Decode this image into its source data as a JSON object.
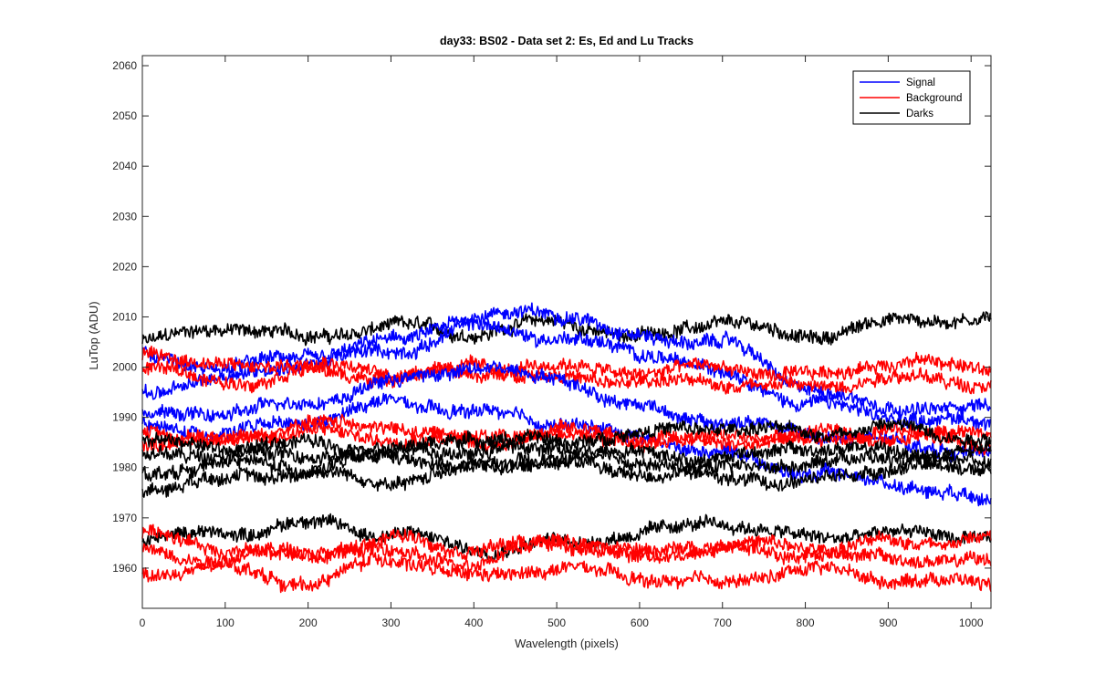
{
  "chart_data": {
    "type": "line",
    "title": "day33: BS02 - Data set 2: Es, Ed and Lu Tracks",
    "xlabel": "Wavelength (pixels)",
    "ylabel": "LuTop (ADU)",
    "xlim": [
      0,
      1024
    ],
    "ylim": [
      1952,
      2062
    ],
    "xticks": [
      0,
      100,
      200,
      300,
      400,
      500,
      600,
      700,
      800,
      900,
      1000
    ],
    "yticks": [
      1960,
      1970,
      1980,
      1990,
      2000,
      2010,
      2020,
      2030,
      2040,
      2050,
      2060
    ],
    "grid": false,
    "legend_position": "top-right",
    "legend": [
      {
        "name": "Signal",
        "color": "#0000ff"
      },
      {
        "name": "Background",
        "color": "#ff0000"
      },
      {
        "name": "Darks",
        "color": "#000000"
      }
    ],
    "series": [
      {
        "group": "Darks",
        "color": "#000000",
        "x": [
          0,
          100,
          200,
          300,
          400,
          500,
          600,
          700,
          800,
          900,
          1024
        ],
        "values": [
          2005,
          2008,
          2006,
          2008,
          2007,
          2009,
          2006,
          2009,
          2006,
          2009,
          2010
        ]
      },
      {
        "group": "Signal",
        "color": "#0000ff",
        "x": [
          0,
          100,
          200,
          300,
          400,
          500,
          600,
          700,
          800,
          900,
          1024
        ],
        "values": [
          2002,
          2000,
          2002,
          2005,
          2010,
          2011,
          2006,
          2005,
          1996,
          1992,
          1992
        ]
      },
      {
        "group": "Signal",
        "color": "#0000ff",
        "x": [
          0,
          100,
          200,
          300,
          400,
          500,
          600,
          700,
          800,
          900,
          1024
        ],
        "values": [
          1995,
          1998,
          2001,
          2003,
          2008,
          2006,
          2003,
          1999,
          1993,
          1990,
          1989
        ]
      },
      {
        "group": "Background",
        "color": "#ff0000",
        "x": [
          0,
          100,
          200,
          300,
          400,
          500,
          600,
          700,
          800,
          900,
          1024
        ],
        "values": [
          2003,
          2000,
          2001,
          1999,
          2000,
          2000,
          1999,
          2000,
          1998,
          2001,
          2000
        ]
      },
      {
        "group": "Background",
        "color": "#ff0000",
        "x": [
          0,
          100,
          200,
          300,
          400,
          500,
          600,
          700,
          800,
          900,
          1024
        ],
        "values": [
          2000,
          1997,
          1999,
          1998,
          1999,
          1998,
          1997,
          1997,
          1996,
          1998,
          1997
        ]
      },
      {
        "group": "Signal",
        "color": "#0000ff",
        "x": [
          0,
          100,
          200,
          300,
          400,
          500,
          600,
          700,
          800,
          900,
          1024
        ],
        "values": [
          1990,
          1991,
          1993,
          1997,
          2000,
          1998,
          1992,
          1989,
          1987,
          1985,
          1983
        ]
      },
      {
        "group": "Signal",
        "color": "#0000ff",
        "x": [
          0,
          100,
          200,
          300,
          400,
          500,
          600,
          700,
          800,
          900,
          1024
        ],
        "values": [
          1988,
          1987,
          1989,
          1993,
          1991,
          1989,
          1986,
          1983,
          1979,
          1977,
          1974
        ]
      },
      {
        "group": "Background",
        "color": "#ff0000",
        "x": [
          0,
          100,
          200,
          300,
          400,
          500,
          600,
          700,
          800,
          900,
          1024
        ],
        "values": [
          1987,
          1985,
          1989,
          1988,
          1986,
          1987,
          1986,
          1986,
          1987,
          1986,
          1987
        ]
      },
      {
        "group": "Background",
        "color": "#ff0000",
        "x": [
          0,
          100,
          200,
          300,
          400,
          500,
          600,
          700,
          800,
          900,
          1024
        ],
        "values": [
          1985,
          1986,
          1987,
          1986,
          1985,
          1987,
          1985,
          1985,
          1985,
          1987,
          1985
        ]
      },
      {
        "group": "Darks",
        "color": "#000000",
        "x": [
          0,
          100,
          200,
          300,
          400,
          500,
          600,
          700,
          800,
          900,
          1024
        ],
        "values": [
          1985,
          1984,
          1985,
          1983,
          1986,
          1985,
          1987,
          1988,
          1987,
          1988,
          1986
        ]
      },
      {
        "group": "Darks",
        "color": "#000000",
        "x": [
          0,
          100,
          200,
          300,
          400,
          500,
          600,
          700,
          800,
          900,
          1024
        ],
        "values": [
          1982,
          1983,
          1982,
          1984,
          1983,
          1984,
          1983,
          1982,
          1984,
          1983,
          1983
        ]
      },
      {
        "group": "Darks",
        "color": "#000000",
        "x": [
          0,
          100,
          200,
          300,
          400,
          500,
          600,
          700,
          800,
          900,
          1024
        ],
        "values": [
          1979,
          1981,
          1980,
          1982,
          1980,
          1982,
          1981,
          1980,
          1981,
          1982,
          1981
        ]
      },
      {
        "group": "Darks",
        "color": "#000000",
        "x": [
          0,
          100,
          200,
          300,
          400,
          500,
          600,
          700,
          800,
          900,
          1024
        ],
        "values": [
          1976,
          1978,
          1979,
          1977,
          1980,
          1981,
          1979,
          1978,
          1977,
          1980,
          1980
        ]
      },
      {
        "group": "Darks",
        "color": "#000000",
        "x": [
          0,
          100,
          200,
          300,
          400,
          500,
          600,
          700,
          800,
          900,
          1024
        ],
        "values": [
          1966,
          1967,
          1969,
          1967,
          1964,
          1965,
          1967,
          1969,
          1966,
          1967,
          1966
        ]
      },
      {
        "group": "Background",
        "color": "#ff0000",
        "x": [
          0,
          100,
          200,
          300,
          400,
          500,
          600,
          700,
          800,
          900,
          1024
        ],
        "values": [
          1967,
          1964,
          1962,
          1966,
          1964,
          1965,
          1963,
          1965,
          1964,
          1965,
          1966
        ]
      },
      {
        "group": "Background",
        "color": "#ff0000",
        "x": [
          0,
          100,
          200,
          300,
          400,
          500,
          600,
          700,
          800,
          900,
          1024
        ],
        "values": [
          1963,
          1962,
          1964,
          1963,
          1961,
          1966,
          1962,
          1964,
          1963,
          1962,
          1961
        ]
      },
      {
        "group": "Background",
        "color": "#ff0000",
        "x": [
          0,
          100,
          200,
          300,
          400,
          500,
          600,
          700,
          800,
          900,
          1024
        ],
        "values": [
          1959,
          1960,
          1957,
          1962,
          1958,
          1960,
          1958,
          1957,
          1960,
          1958,
          1957
        ]
      }
    ]
  }
}
